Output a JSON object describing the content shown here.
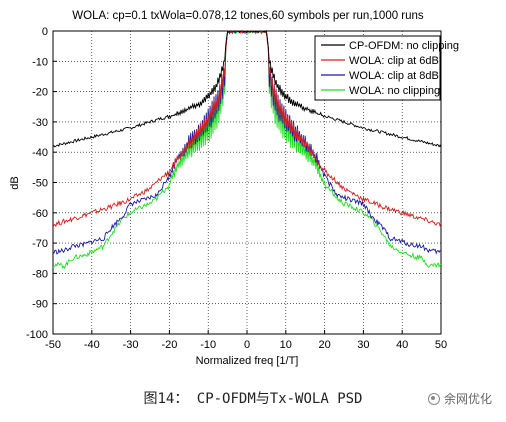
{
  "caption": "图14：  CP-OFDM与Tx-WOLA PSD",
  "watermark": "余网优化",
  "chart_data": {
    "type": "line",
    "title": "WOLA: cp=0.1 txWola=0.078,12 tones,60 symbols per run,1000 runs",
    "xlabel": "Normalized freq [1/T]",
    "ylabel": "dB",
    "xlim": [
      -50,
      50
    ],
    "ylim": [
      -100,
      0
    ],
    "xticks": [
      -50,
      -40,
      -30,
      -20,
      -10,
      0,
      10,
      20,
      30,
      40,
      50
    ],
    "yticks": [
      0,
      -10,
      -20,
      -30,
      -40,
      -50,
      -60,
      -70,
      -80,
      -90,
      -100
    ],
    "grid": true,
    "legend_position": "top-right",
    "series": [
      {
        "name": "CP-OFDM: no clipping",
        "color": "#000000",
        "x": [
          -50,
          -45,
          -40,
          -35,
          -30,
          -25,
          -20,
          -15,
          -12,
          -10,
          -8,
          -7,
          -6,
          -5,
          0,
          5,
          6,
          7,
          8,
          10,
          12,
          15,
          20,
          25,
          30,
          35,
          40,
          45,
          50
        ],
        "y": [
          -38,
          -36.5,
          -35,
          -33.5,
          -32,
          -30,
          -28,
          -25,
          -23,
          -20.5,
          -17.5,
          -14,
          -10,
          0,
          0,
          0,
          -10,
          -14,
          -17.5,
          -20.5,
          -23,
          -25,
          -28,
          -30,
          -32,
          -33.5,
          -35,
          -36.5,
          -38
        ]
      },
      {
        "name": "WOLA: clip at 6dB",
        "color": "#d42020",
        "x": [
          -50,
          -45,
          -40,
          -35,
          -30,
          -25,
          -20,
          -17,
          -15,
          -12,
          -10,
          -8,
          -7,
          -6,
          -5,
          0,
          5,
          6,
          7,
          8,
          10,
          12,
          15,
          17,
          20,
          25,
          30,
          35,
          40,
          45,
          50
        ],
        "y": [
          -64,
          -62,
          -60,
          -58,
          -55.5,
          -52,
          -46,
          -40,
          -36,
          -31,
          -27,
          -22,
          -18,
          -12,
          0,
          0,
          0,
          -12,
          -18,
          -22,
          -27,
          -31,
          -36,
          -40,
          -46,
          -52,
          -55.5,
          -58,
          -60,
          -62,
          -64
        ]
      },
      {
        "name": "WOLA: clip at 8dB",
        "color": "#1a1aa0",
        "x": [
          -50,
          -47,
          -45,
          -42,
          -40,
          -37,
          -35,
          -32,
          -30,
          -27,
          -25,
          -23,
          -20,
          -18,
          -15,
          -12,
          -10,
          -8,
          -7,
          -6,
          -5,
          0,
          5,
          6,
          7,
          8,
          10,
          12,
          15,
          18,
          20,
          23,
          25,
          27,
          30,
          32,
          35,
          37,
          40,
          42,
          45,
          47,
          50
        ],
        "y": [
          -73,
          -72.5,
          -71,
          -70.5,
          -69.5,
          -68.5,
          -65,
          -61,
          -57,
          -56,
          -55,
          -54,
          -47,
          -41,
          -35,
          -30,
          -26,
          -21,
          -17,
          -12,
          0,
          0,
          0,
          -12,
          -17,
          -21,
          -26,
          -30,
          -35,
          -41,
          -47,
          -54,
          -55,
          -56,
          -57,
          -61,
          -65,
          -68.5,
          -69.5,
          -70.5,
          -71,
          -72.5,
          -73
        ]
      },
      {
        "name": "WOLA: no clipping",
        "color": "#22dd22",
        "x": [
          -50,
          -47,
          -45,
          -42,
          -40,
          -37,
          -35,
          -32,
          -30,
          -27,
          -25,
          -23,
          -20,
          -18,
          -15,
          -12,
          -10,
          -8,
          -7,
          -6,
          -5,
          0,
          5,
          6,
          7,
          8,
          10,
          12,
          15,
          18,
          20,
          23,
          25,
          27,
          30,
          32,
          35,
          37,
          40,
          42,
          45,
          47,
          50
        ],
        "y": [
          -77,
          -77.5,
          -75,
          -74,
          -73,
          -71,
          -67,
          -62,
          -60,
          -58,
          -57,
          -55,
          -50,
          -43,
          -37,
          -32,
          -28,
          -23,
          -19,
          -13,
          0,
          0,
          0,
          -13,
          -19,
          -23,
          -28,
          -32,
          -37,
          -43,
          -50,
          -55,
          -57,
          -58,
          -60,
          -62,
          -67,
          -71,
          -73,
          -74,
          -75,
          -77.5,
          -77
        ]
      }
    ]
  }
}
